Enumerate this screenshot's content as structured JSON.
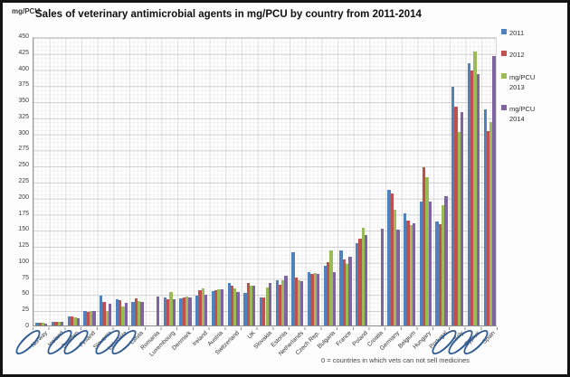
{
  "header": {
    "axis_unit_label": "mg/PCU",
    "title": "Sales of veterinary antimicrobial agents in mg/PCU by country from 2011-2014"
  },
  "chart_data": {
    "type": "bar",
    "title": "Sales of veterinary antimicrobial agents in mg/PCU by country from 2011-2014",
    "ylabel": "mg/PCU",
    "xlabel": "",
    "ylim": [
      0,
      450
    ],
    "ytick_step": 25,
    "grid": true,
    "legend_position": "right",
    "footnote": "0 = countries in which vets can not sell medicines",
    "categories": [
      "Norway",
      "Iceland",
      "Sweden",
      "Finland",
      "Slovenia",
      "Lithuania",
      "Latvia",
      "Romania",
      "Luxembourg",
      "Denmark",
      "Ireland",
      "Austria",
      "Switzerland",
      "UK",
      "Slovakia",
      "Estonia",
      "Netherlands",
      "Czech Rep.",
      "Bulgaria",
      "France",
      "Poland",
      "Croatia",
      "Germany",
      "Belgium",
      "Hungary",
      "Portugal",
      "Italy",
      "Cyprus",
      "Spain"
    ],
    "circled_categories": [
      "Norway",
      "Sweden",
      "Finland",
      "Lithuania",
      "Latvia",
      "Italy",
      "Cyprus",
      "Spain"
    ],
    "annotation_color": "#2f5b93",
    "series": [
      {
        "name": "2011",
        "color": "#4F81BD",
        "values": [
          3.7,
          6.3,
          13.6,
          21.9,
          46.1,
          41.3,
          36.7,
          null,
          43.2,
          42.6,
          46.5,
          54.0,
          66.0,
          51.1,
          43.7,
          70.7,
          114.5,
          83.0,
          92.2,
          116.5,
          127.3,
          null,
          211.5,
          174.8,
          192.5,
          161.8,
          371.0,
          407.6,
          335.8
        ]
      },
      {
        "name": "2012",
        "color": "#C0504D",
        "values": [
          3.8,
          5.9,
          13.5,
          21.8,
          37.0,
          39.2,
          41.6,
          null,
          40.9,
          44.1,
          55.0,
          54.9,
          62.0,
          66.3,
          43.3,
          62.9,
          74.9,
          79.8,
          98.9,
          102.7,
          135.2,
          null,
          204.8,
          163.1,
          245.8,
          156.9,
          341.0,
          396.5,
          302.4
        ]
      },
      {
        "name": "mg/PCU 2013",
        "color": "#9BBB59",
        "values": [
          3.7,
          5.3,
          12.7,
          22.4,
          22.4,
          29.1,
          37.7,
          null,
          52.1,
          44.9,
          57.9,
          56.9,
          58.0,
          62.1,
          59.3,
          70.4,
          69.9,
          82.2,
          116.1,
          95.0,
          151.5,
          null,
          179.7,
          156.6,
          230.7,
          187.2,
          301.6,
          425.8,
          317.1
        ]
      },
      {
        "name": "mg/PCU 2014",
        "color": "#8064A2",
        "values": [
          3.1,
          5.2,
          11.5,
          22.3,
          33.4,
          35.5,
          36.7,
          45.0,
          40.9,
          44.2,
          47.6,
          56.3,
          52.0,
          62.1,
          65.9,
          77.1,
          68.4,
          79.5,
          82.9,
          107.0,
          140.8,
          150.0,
          149.3,
          158.3,
          193.1,
          201.6,
          332.4,
          391.5,
          418.8
        ]
      }
    ]
  }
}
